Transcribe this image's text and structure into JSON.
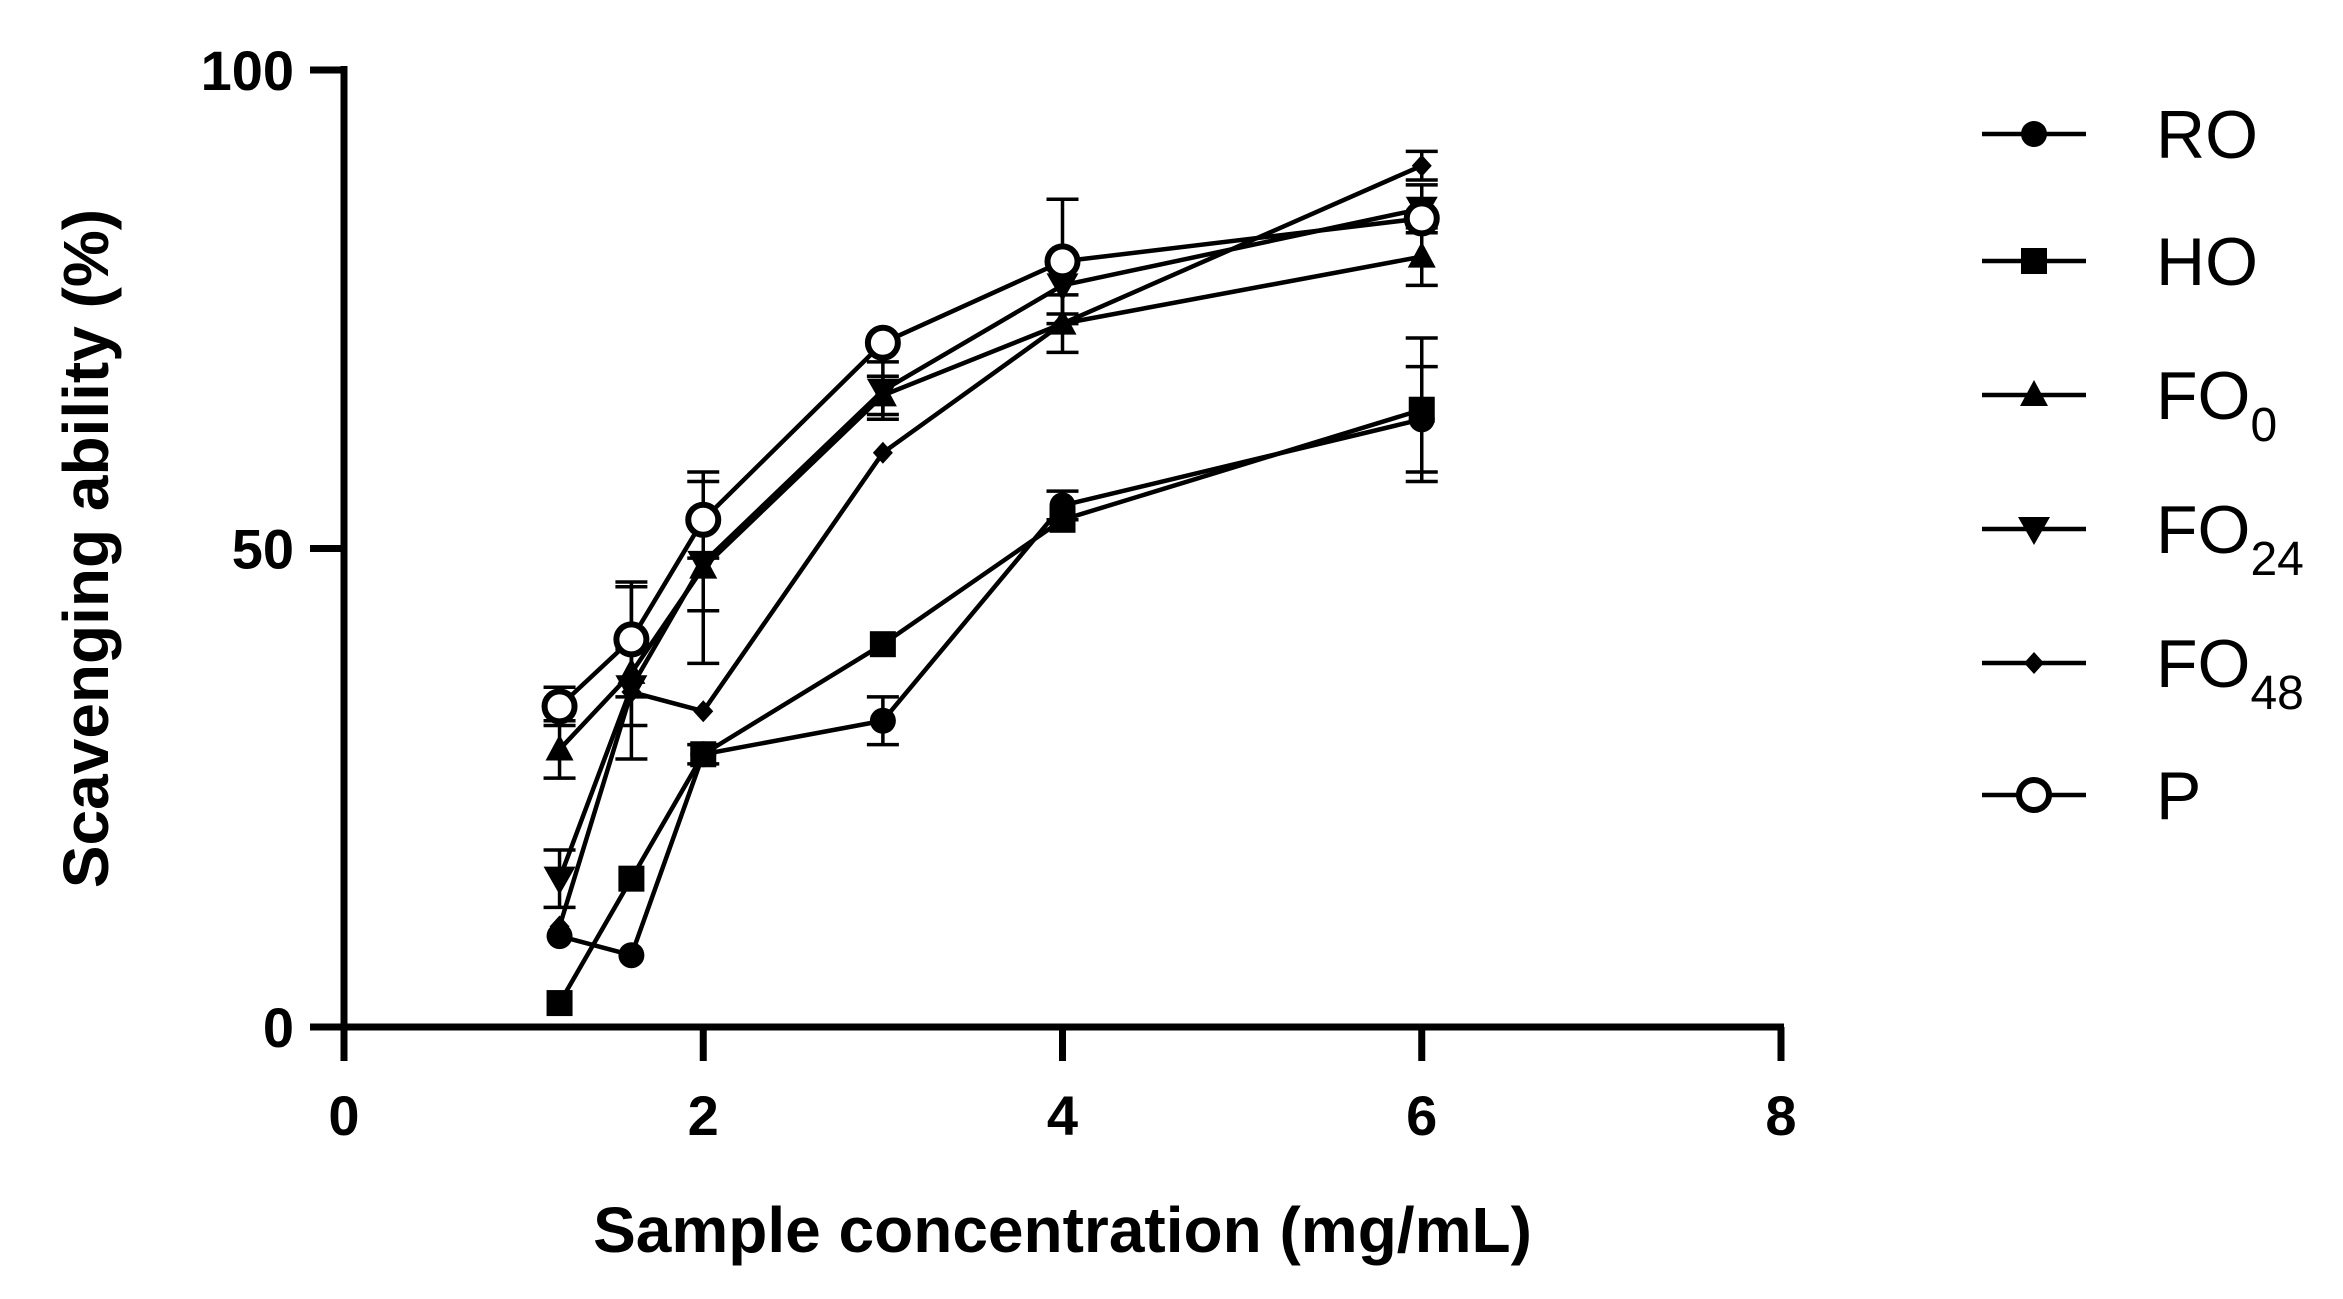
{
  "chart_data": {
    "type": "line",
    "xlabel": "Sample concentration (mg/mL)",
    "ylabel": "Scavenging ability (%)",
    "xlim": [
      0,
      8
    ],
    "ylim": [
      0,
      100
    ],
    "x_ticks": [
      "0",
      "2",
      "4",
      "6",
      "8"
    ],
    "y_ticks": [
      "0",
      "50",
      "100"
    ],
    "x": [
      1.2,
      1.6,
      2,
      3,
      4,
      6
    ],
    "legend_position": "right",
    "series": [
      {
        "name": "RO",
        "label_main": "RO",
        "label_sub": "",
        "marker": "circle",
        "values": [
          9.5,
          7.5,
          28.5,
          32,
          54.5,
          63.5
        ],
        "errors": [
          0,
          0,
          1,
          2.5,
          1.5,
          5.5
        ]
      },
      {
        "name": "HO",
        "label_main": "HO",
        "label_sub": "",
        "marker": "square",
        "values": [
          2.5,
          15.5,
          28.5,
          40,
          53,
          64.5
        ],
        "errors": [
          0,
          0,
          0,
          0,
          0,
          7.5
        ]
      },
      {
        "name": "FO0",
        "label_main": "FO",
        "label_sub": "0",
        "marker": "triangle-up",
        "values": [
          29,
          37,
          48,
          66,
          73.5,
          80.5
        ],
        "errors": [
          3,
          9,
          10,
          2,
          3,
          3
        ]
      },
      {
        "name": "FO24",
        "label_main": "FO",
        "label_sub": "24",
        "marker": "triangle-down",
        "values": [
          15.5,
          35.5,
          48.5,
          66.5,
          77.5,
          85.5
        ],
        "errors": [
          3,
          4,
          5,
          3,
          3,
          2.5
        ]
      },
      {
        "name": "FO48",
        "label_main": "FO",
        "label_sub": "48",
        "marker": "diamond",
        "values": [
          10.5,
          35,
          33,
          60,
          73.5,
          90
        ],
        "errors": [
          0,
          0,
          0,
          0,
          0,
          1.5
        ]
      },
      {
        "name": "P",
        "label_main": "P",
        "label_sub": "",
        "marker": "circle-open",
        "values": [
          33.5,
          40.5,
          53,
          71.5,
          80,
          84.5
        ],
        "errors": [
          2,
          6,
          4,
          0,
          6.5,
          0
        ]
      }
    ]
  }
}
